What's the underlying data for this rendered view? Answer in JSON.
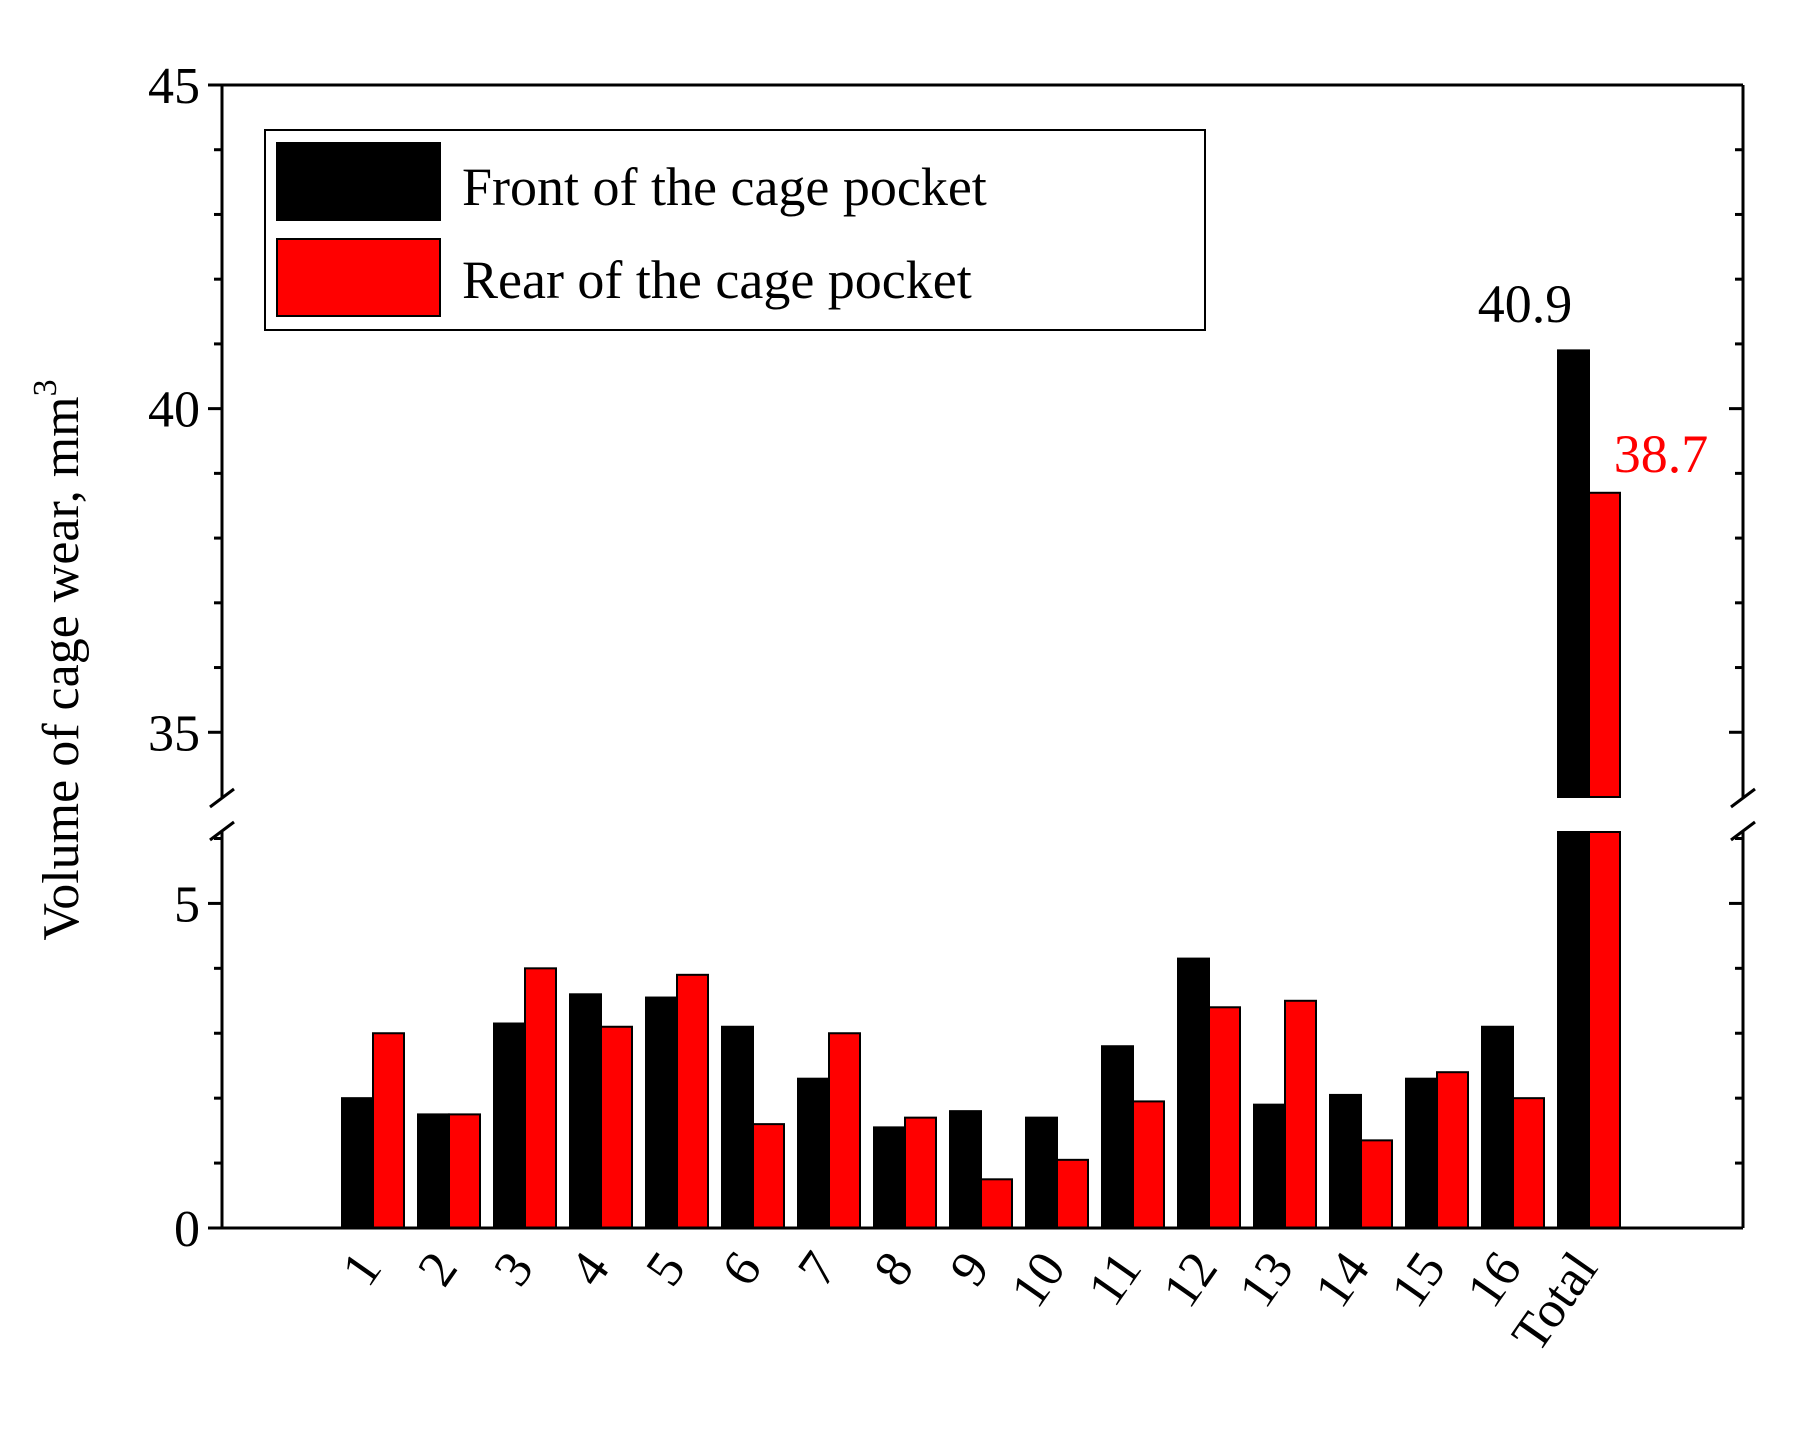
{
  "chart_data": {
    "type": "bar",
    "ylabel": "Volume of cage wear, mm",
    "ylabel_superscript": "3",
    "categories": [
      "1",
      "2",
      "3",
      "4",
      "5",
      "6",
      "7",
      "8",
      "9",
      "10",
      "11",
      "12",
      "13",
      "14",
      "15",
      "16",
      "Total"
    ],
    "series": [
      {
        "name": "Front of the cage pocket",
        "color": "#000000",
        "values": [
          2.0,
          1.75,
          3.15,
          3.6,
          3.55,
          3.1,
          2.3,
          1.55,
          1.8,
          1.7,
          2.8,
          4.15,
          1.9,
          2.05,
          2.3,
          3.1,
          40.9
        ]
      },
      {
        "name": "Rear of the cage pocket",
        "color": "#ff0000",
        "values": [
          3.0,
          1.75,
          4.0,
          3.1,
          3.9,
          1.6,
          3.0,
          1.7,
          0.75,
          1.05,
          1.95,
          3.4,
          3.5,
          1.35,
          2.4,
          2.0,
          38.7
        ]
      }
    ],
    "broken_axis": true,
    "lower_segment": {
      "ylim": [
        0,
        6.1
      ],
      "ticks": [
        "0",
        "5"
      ]
    },
    "upper_segment": {
      "ylim": [
        34,
        45
      ],
      "ticks": [
        "35",
        "40",
        "45"
      ]
    },
    "annotations": [
      {
        "text": "40.9",
        "color": "#000000"
      },
      {
        "text": "38.7",
        "color": "#ff0000"
      }
    ],
    "legend": "top-left",
    "grid": false
  }
}
